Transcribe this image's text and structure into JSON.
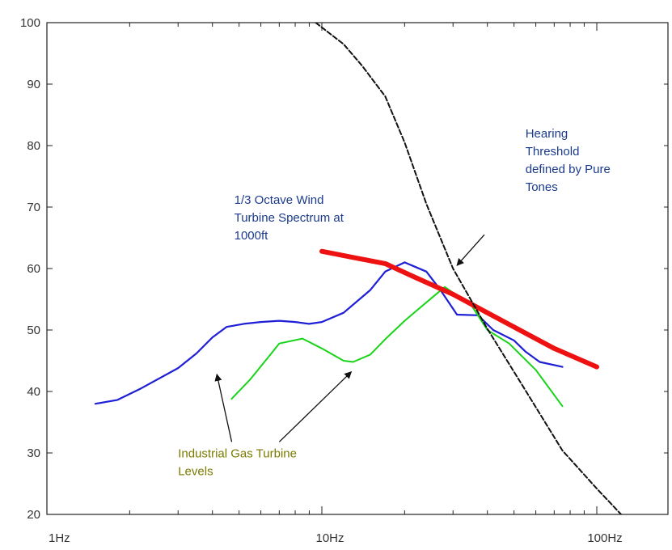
{
  "chart_data": {
    "type": "line",
    "x_scale": "log",
    "xlim": [
      "1Hz",
      "100Hz"
    ],
    "ylim": [
      20,
      100
    ],
    "grid": false,
    "x_tick_labels": [
      "1Hz",
      "10Hz",
      "100Hz"
    ],
    "y_tick_labels": [
      "20",
      "30",
      "40",
      "50",
      "60",
      "70",
      "80",
      "90",
      "100"
    ],
    "series": [
      {
        "color": "#1f1fd6",
        "points": [
          [
            1.5,
            38
          ],
          [
            1.8,
            38.6
          ],
          [
            2.2,
            40.5
          ],
          [
            3.0,
            43.8
          ],
          [
            3.5,
            46.2
          ],
          [
            4.0,
            48.8
          ],
          [
            4.5,
            50.5
          ],
          [
            5.2,
            51
          ],
          [
            6.0,
            51.3
          ],
          [
            7.0,
            51.5
          ],
          [
            8.0,
            51.3
          ],
          [
            9.0,
            51
          ],
          [
            10.0,
            51.3
          ],
          [
            12.0,
            52.8
          ],
          [
            15.0,
            56.5
          ],
          [
            17.0,
            59.5
          ],
          [
            20.0,
            61
          ],
          [
            24.0,
            59.5
          ],
          [
            27.0,
            56.5
          ],
          [
            31.0,
            52.5
          ],
          [
            37.0,
            52.4
          ],
          [
            42.0,
            50
          ],
          [
            50.0,
            48.3
          ],
          [
            55.0,
            46.5
          ],
          [
            62.0,
            44.8
          ],
          [
            75.0,
            44
          ]
        ]
      },
      {
        "color": "#19d419",
        "points": [
          [
            4.7,
            38.8
          ],
          [
            5.5,
            42
          ],
          [
            6.5,
            46
          ],
          [
            7.0,
            47.8
          ],
          [
            8.5,
            48.6
          ],
          [
            10.0,
            47
          ],
          [
            12.0,
            45
          ],
          [
            13.0,
            44.8
          ],
          [
            15.0,
            46
          ],
          [
            17.0,
            48.5
          ],
          [
            20.0,
            51.5
          ],
          [
            24.0,
            54.5
          ],
          [
            28.0,
            57
          ],
          [
            35.0,
            54
          ],
          [
            40.0,
            50
          ],
          [
            48.0,
            47.8
          ],
          [
            60.0,
            43.5
          ],
          [
            75.0,
            37.6
          ]
        ]
      },
      {
        "color": "#ee1111",
        "points": [
          [
            10.0,
            62.8
          ],
          [
            13.0,
            61.8
          ],
          [
            17.0,
            60.8
          ],
          [
            22.0,
            58.5
          ],
          [
            30.0,
            55.8
          ],
          [
            40.0,
            52.8
          ],
          [
            55.0,
            49.5
          ],
          [
            70.0,
            47
          ],
          [
            100.0,
            44
          ]
        ]
      },
      {
        "color": "#111111",
        "dashed": true,
        "points": [
          [
            9.5,
            100
          ],
          [
            12.0,
            96.5
          ],
          [
            14.0,
            93
          ],
          [
            17.0,
            88
          ],
          [
            20.0,
            80.5
          ],
          [
            24.0,
            70.5
          ],
          [
            30.0,
            60
          ],
          [
            40.0,
            50.2
          ],
          [
            55.0,
            40.2
          ],
          [
            75.0,
            30.4
          ],
          [
            100.0,
            24.2
          ],
          [
            125.0,
            19.6
          ]
        ]
      }
    ],
    "annotations": [
      {
        "lines": [
          "1/3 Octave Wind",
          "Turbine Spectrum at",
          "1000ft"
        ],
        "color": "#1b3a8c",
        "at": [
          4.8,
          70.5
        ],
        "arrow": null
      },
      {
        "lines": [
          "Hearing",
          "Threshold",
          "defined by Pure",
          "Tones"
        ],
        "color": "#1b3a8c",
        "at": [
          55.0,
          81.3
        ],
        "arrow": {
          "from": [
            39.0,
            65.5
          ],
          "to": [
            31.0,
            60.5
          ]
        }
      },
      {
        "lines": [
          "Industrial Gas Turbine",
          "Levels"
        ],
        "color": "#7a7a00",
        "at": [
          3.0,
          29.3
        ],
        "arrow": null,
        "arrows": [
          {
            "from": [
              4.7,
              31.8
            ],
            "to": [
              4.15,
              42.8
            ]
          },
          {
            "from": [
              7.0,
              31.8
            ],
            "to": [
              12.8,
              43.2
            ]
          }
        ]
      }
    ]
  }
}
